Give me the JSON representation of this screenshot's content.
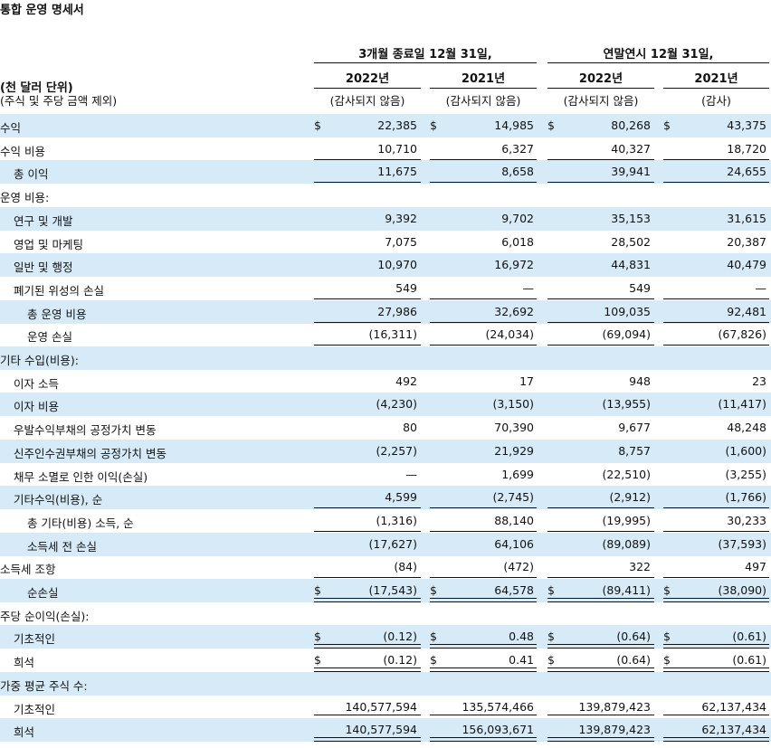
{
  "title": "통합 운영 명세서",
  "header": {
    "group1": "3개월 종료일 12월 31일,",
    "group2": "연말연시 12월 31일,",
    "unit_line1": "(천 달러 단위)",
    "unit_line2": "(주식 및 주당 금액 제외)",
    "columns": [
      {
        "year": "2022년",
        "status": "(감사되지 않음)"
      },
      {
        "year": "2021년",
        "status": "(감사되지 않음)"
      },
      {
        "year": "2022년",
        "status": "(감사되지 않음)"
      },
      {
        "year": "2021년",
        "status": "(감사)"
      }
    ]
  },
  "currency_symbol": "$",
  "rows": [
    {
      "label": "수익",
      "indent": 0,
      "shade": true,
      "dollar": true,
      "values": [
        "22,385",
        "14,985",
        "80,268",
        "43,375"
      ]
    },
    {
      "label": "수익 비용",
      "indent": 0,
      "shade": false,
      "values": [
        "10,710",
        "6,327",
        "40,327",
        "18,720"
      ],
      "rule": "single"
    },
    {
      "label": "총 이익",
      "indent": 1,
      "shade": true,
      "values": [
        "11,675",
        "8,658",
        "39,941",
        "24,655"
      ],
      "rule": "single"
    },
    {
      "label": "운영 비용:",
      "indent": 0,
      "shade": false,
      "values": [
        "",
        "",
        "",
        ""
      ]
    },
    {
      "label": "연구 및 개발",
      "indent": 1,
      "shade": true,
      "values": [
        "9,392",
        "9,702",
        "35,153",
        "31,615"
      ]
    },
    {
      "label": "영업 및 마케팅",
      "indent": 1,
      "shade": false,
      "values": [
        "7,075",
        "6,018",
        "28,502",
        "20,387"
      ]
    },
    {
      "label": "일반 및 행정",
      "indent": 1,
      "shade": true,
      "values": [
        "10,970",
        "16,972",
        "44,831",
        "40,479"
      ]
    },
    {
      "label": "폐기된 위성의 손실",
      "indent": 1,
      "shade": false,
      "values": [
        "549",
        "—",
        "549",
        "—"
      ],
      "rule": "single"
    },
    {
      "label": "총 운영 비용",
      "indent": 2,
      "shade": true,
      "values": [
        "27,986",
        "32,692",
        "109,035",
        "92,481"
      ],
      "rule": "single"
    },
    {
      "label": "운영 손실",
      "indent": 2,
      "shade": false,
      "values": [
        "(16,311)",
        "(24,034)",
        "(69,094)",
        "(67,826)"
      ],
      "rule": "single"
    },
    {
      "label": "기타 수입(비용):",
      "indent": 0,
      "shade": true,
      "values": [
        "",
        "",
        "",
        ""
      ]
    },
    {
      "label": "이자 소득",
      "indent": 1,
      "shade": false,
      "values": [
        "492",
        "17",
        "948",
        "23"
      ]
    },
    {
      "label": "이자 비용",
      "indent": 1,
      "shade": true,
      "values": [
        "(4,230)",
        "(3,150)",
        "(13,955)",
        "(11,417)"
      ]
    },
    {
      "label": "우발수익부채의 공정가치 변동",
      "indent": 1,
      "shade": false,
      "values": [
        "80",
        "70,390",
        "9,677",
        "48,248"
      ]
    },
    {
      "label": "신주인수권부채의 공정가치 변동",
      "indent": 1,
      "shade": true,
      "values": [
        "(2,257)",
        "21,929",
        "8,757",
        "(1,600)"
      ]
    },
    {
      "label": "채무 소멸로 인한 이익(손실)",
      "indent": 1,
      "shade": false,
      "values": [
        "—",
        "1,699",
        "(22,510)",
        "(3,255)"
      ]
    },
    {
      "label": "기타수익(비용), 순",
      "indent": 1,
      "shade": true,
      "values": [
        "4,599",
        "(2,745)",
        "(2,912)",
        "(1,766)"
      ],
      "rule": "single"
    },
    {
      "label": "총 기타(비용) 소득, 순",
      "indent": 2,
      "shade": false,
      "values": [
        "(1,316)",
        "88,140",
        "(19,995)",
        "30,233"
      ],
      "rule": "single"
    },
    {
      "label": "소득세 전 손실",
      "indent": 2,
      "shade": true,
      "values": [
        "(17,627)",
        "64,106",
        "(89,089)",
        "(37,593)"
      ]
    },
    {
      "label": "소득세 조항",
      "indent": 0,
      "shade": false,
      "values": [
        "(84)",
        "(472)",
        "322",
        "497"
      ],
      "rule": "single"
    },
    {
      "label": "순손실",
      "indent": 2,
      "shade": true,
      "dollar": true,
      "values": [
        "(17,543)",
        "64,578",
        "(89,411)",
        "(38,090)"
      ],
      "rule": "double"
    },
    {
      "label": "주당 순이익(손실):",
      "indent": 0,
      "shade": false,
      "values": [
        "",
        "",
        "",
        ""
      ]
    },
    {
      "label": "기초적인",
      "indent": 1,
      "shade": true,
      "dollar": true,
      "values": [
        "(0.12)",
        "0.48",
        "(0.64)",
        "(0.61)"
      ],
      "rule": "double"
    },
    {
      "label": "희석",
      "indent": 1,
      "shade": false,
      "dollar": true,
      "values": [
        "(0.12)",
        "0.41",
        "(0.64)",
        "(0.61)"
      ],
      "rule": "double"
    },
    {
      "label": "가중 평균 주식 수:",
      "indent": 0,
      "shade": true,
      "values": [
        "",
        "",
        "",
        ""
      ]
    },
    {
      "label": "기초적인",
      "indent": 1,
      "shade": false,
      "values": [
        "140,577,594",
        "135,574,466",
        "139,879,423",
        "62,137,434"
      ],
      "rule": "double"
    },
    {
      "label": "희석",
      "indent": 1,
      "shade": true,
      "values": [
        "140,577,594",
        "156,093,671",
        "139,879,423",
        "62,137,434"
      ],
      "rule": "double"
    }
  ]
}
